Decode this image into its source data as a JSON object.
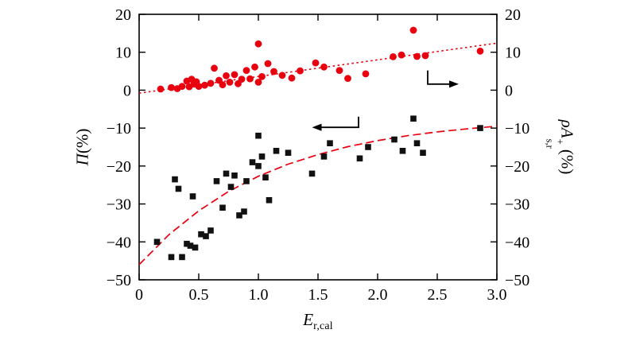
{
  "labels": {
    "x_main": "E",
    "x_sub": "r,cal",
    "left_main": "Π",
    "left_suffix": "(%)",
    "right_rho": "ρ",
    "right_A": "A",
    "right_sup": "+",
    "right_sub": "s,r",
    "right_suffix": "(%)"
  },
  "chart_data": {
    "type": "scatter",
    "title": "",
    "xlabel": "E_{r,cal}",
    "ylabel_left": "Π(%)",
    "ylabel_right": "ρA+_{s,r}(%)",
    "xlim": [
      0,
      3.0
    ],
    "ylim": [
      -50,
      20
    ],
    "grid": false,
    "legend": "none",
    "frame_color": "#000000",
    "x_tick_values": [
      0,
      0.5,
      1.0,
      1.5,
      2.0,
      2.5,
      3.0
    ],
    "x_tick_labels": [
      "0",
      "0.5",
      "1.0",
      "1.5",
      "2.0",
      "2.5",
      "3.0"
    ],
    "y_tick_values": [
      20,
      10,
      0,
      -10,
      -20,
      -30,
      -40,
      -50
    ],
    "y_tick_labels": [
      "20",
      "10",
      "0",
      "−10",
      "−20",
      "−30",
      "−40",
      "−50"
    ],
    "series": [
      {
        "name": "series-rho-A-right-axis",
        "marker": "circle",
        "color": "#e8000f",
        "points": [
          [
            0.18,
            0.3
          ],
          [
            0.27,
            0.7
          ],
          [
            0.32,
            0.4
          ],
          [
            0.36,
            1.0
          ],
          [
            0.4,
            2.4
          ],
          [
            0.42,
            0.9
          ],
          [
            0.44,
            2.9
          ],
          [
            0.46,
            1.6
          ],
          [
            0.48,
            2.2
          ],
          [
            0.5,
            1.0
          ],
          [
            0.55,
            1.3
          ],
          [
            0.6,
            1.8
          ],
          [
            0.63,
            5.8
          ],
          [
            0.67,
            2.6
          ],
          [
            0.7,
            1.4
          ],
          [
            0.73,
            3.8
          ],
          [
            0.76,
            2.1
          ],
          [
            0.8,
            4.1
          ],
          [
            0.83,
            1.7
          ],
          [
            0.86,
            2.9
          ],
          [
            0.9,
            5.2
          ],
          [
            0.93,
            3.0
          ],
          [
            0.97,
            6.1
          ],
          [
            1.0,
            12.2
          ],
          [
            1.0,
            2.1
          ],
          [
            1.03,
            3.6
          ],
          [
            1.08,
            7.0
          ],
          [
            1.13,
            4.9
          ],
          [
            1.2,
            3.9
          ],
          [
            1.28,
            3.2
          ],
          [
            1.35,
            5.1
          ],
          [
            1.48,
            7.2
          ],
          [
            1.55,
            6.1
          ],
          [
            1.68,
            5.2
          ],
          [
            1.75,
            3.1
          ],
          [
            1.9,
            4.3
          ],
          [
            2.13,
            8.8
          ],
          [
            2.2,
            9.3
          ],
          [
            2.3,
            15.8
          ],
          [
            2.33,
            8.9
          ],
          [
            2.4,
            9.1
          ],
          [
            2.86,
            10.3
          ]
        ]
      },
      {
        "name": "series-Pi-left-axis",
        "marker": "square",
        "color": "#111111",
        "points": [
          [
            0.15,
            -40
          ],
          [
            0.27,
            -44
          ],
          [
            0.3,
            -23.5
          ],
          [
            0.33,
            -26
          ],
          [
            0.36,
            -44
          ],
          [
            0.4,
            -40.5
          ],
          [
            0.43,
            -41
          ],
          [
            0.45,
            -28
          ],
          [
            0.47,
            -41.5
          ],
          [
            0.52,
            -38
          ],
          [
            0.56,
            -38.5
          ],
          [
            0.6,
            -37
          ],
          [
            0.65,
            -24
          ],
          [
            0.7,
            -31
          ],
          [
            0.73,
            -22
          ],
          [
            0.77,
            -25.5
          ],
          [
            0.8,
            -22.5
          ],
          [
            0.84,
            -33
          ],
          [
            0.88,
            -32
          ],
          [
            0.9,
            -24
          ],
          [
            0.95,
            -19
          ],
          [
            1.0,
            -12
          ],
          [
            1.0,
            -20
          ],
          [
            1.03,
            -17.5
          ],
          [
            1.06,
            -23
          ],
          [
            1.09,
            -29
          ],
          [
            1.15,
            -16
          ],
          [
            1.25,
            -16.5
          ],
          [
            1.45,
            -22
          ],
          [
            1.55,
            -17.5
          ],
          [
            1.6,
            -14
          ],
          [
            1.85,
            -18
          ],
          [
            1.92,
            -15
          ],
          [
            2.14,
            -13
          ],
          [
            2.21,
            -16
          ],
          [
            2.3,
            -7.5
          ],
          [
            2.33,
            -14
          ],
          [
            2.38,
            -16.5
          ],
          [
            2.86,
            -10
          ]
        ]
      }
    ],
    "fit_lines": [
      {
        "name": "fit-dotted-linear-red-circles",
        "color": "#e8000f",
        "dash": "2.5,3.5",
        "width": 1.6,
        "points": [
          [
            0,
            -0.8
          ],
          [
            3.0,
            12.4
          ]
        ]
      },
      {
        "name": "fit-dashed-exponential-black-squares",
        "color": "#e8000f",
        "dash": "10,5",
        "width": 1.7,
        "points": [
          [
            0,
            -46
          ],
          [
            0.25,
            -38.1
          ],
          [
            0.5,
            -31.8
          ],
          [
            0.75,
            -26.7
          ],
          [
            1.0,
            -22.7
          ],
          [
            1.25,
            -19.5
          ],
          [
            1.5,
            -17.0
          ],
          [
            1.75,
            -14.9
          ],
          [
            2.0,
            -13.3
          ],
          [
            2.25,
            -12.0
          ],
          [
            2.5,
            -11.0
          ],
          [
            2.75,
            -10.2
          ],
          [
            3.0,
            -9.5
          ]
        ]
      }
    ],
    "arrows": [
      {
        "name": "right-axis-indicator-arrow",
        "color": "#000000",
        "head": "right",
        "path": [
          [
            2.42,
            5.2
          ],
          [
            2.42,
            1.6
          ],
          [
            2.68,
            1.6
          ]
        ]
      },
      {
        "name": "left-axis-indicator-arrow",
        "color": "#000000",
        "head": "left",
        "path": [
          [
            1.84,
            -7.0
          ],
          [
            1.84,
            -9.8
          ],
          [
            1.45,
            -9.8
          ]
        ]
      }
    ]
  }
}
